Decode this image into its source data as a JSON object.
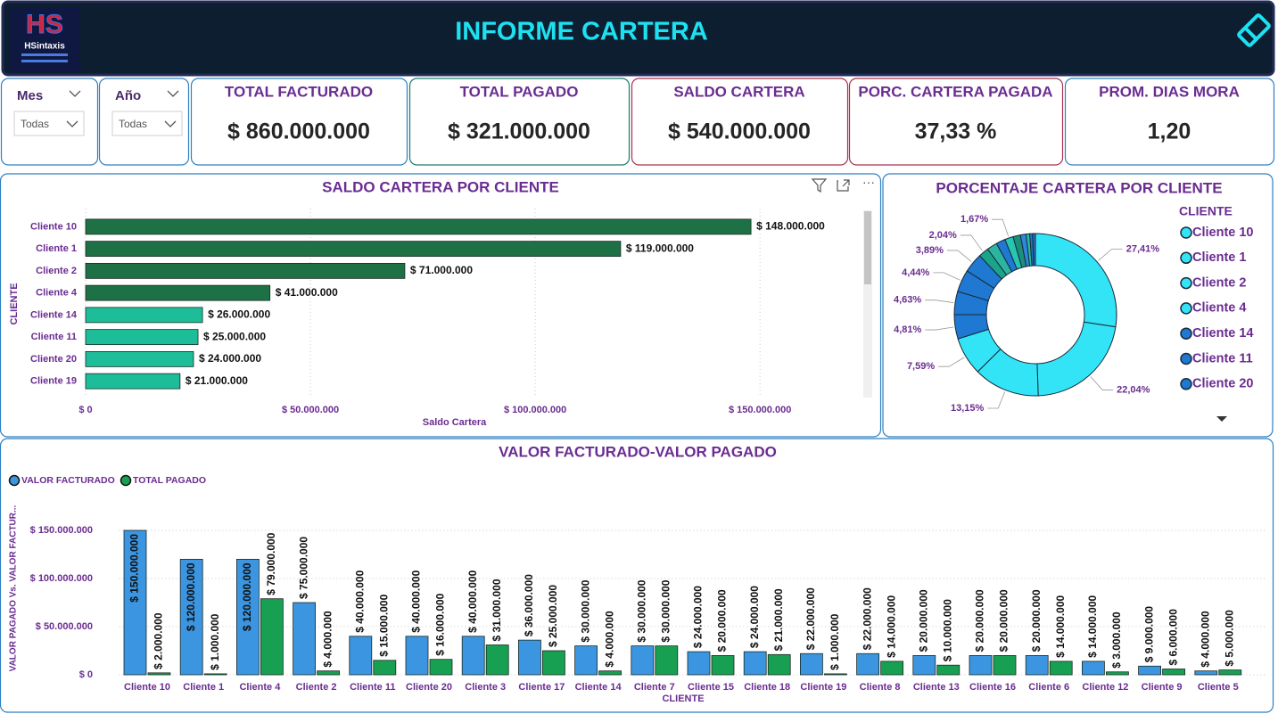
{
  "header": {
    "title": "INFORME CARTERA",
    "logo": {
      "mark": "HS",
      "name": "HSintaxis"
    }
  },
  "filters": [
    {
      "label": "Mes",
      "value": "Todas"
    },
    {
      "label": "Año",
      "value": "Todas"
    }
  ],
  "kpis": [
    {
      "label": "TOTAL FACTURADO",
      "value": "$ 860.000.000"
    },
    {
      "label": "TOTAL PAGADO",
      "value": "$ 321.000.000"
    },
    {
      "label": "SALDO CARTERA",
      "value": "$ 540.000.000"
    },
    {
      "label": "PORC. CARTERA PAGADA",
      "value": "37,33 %"
    },
    {
      "label": "PROM. DIAS MORA",
      "value": "1,20"
    }
  ],
  "chart_data": [
    {
      "type": "bar",
      "orientation": "horizontal",
      "title": "SALDO CARTERA POR CLIENTE",
      "x_label": "Saldo Cartera",
      "y_label": "CLIENTE",
      "categories": [
        "Cliente 10",
        "Cliente 1",
        "Cliente 2",
        "Cliente 4",
        "Cliente 14",
        "Cliente 11",
        "Cliente 20",
        "Cliente 19"
      ],
      "values": [
        148000000,
        119000000,
        71000000,
        41000000,
        26000000,
        25000000,
        24000000,
        21000000
      ],
      "value_labels": [
        "$ 148.000.000",
        "$ 119.000.000",
        "$ 71.000.000",
        "$ 41.000.000",
        "$ 26.000.000",
        "$ 25.000.000",
        "$ 24.000.000",
        "$ 21.000.000"
      ],
      "colors": [
        "#1e7145",
        "#1e7145",
        "#1e7145",
        "#1e7145",
        "#1dbd9a",
        "#1dbd9a",
        "#1dbd9a",
        "#1dbd9a"
      ],
      "xlim": [
        0,
        170000000
      ],
      "xticks": [
        {
          "value": 0,
          "label": "$ 0"
        },
        {
          "value": 50000000,
          "label": "$ 50.000.000"
        },
        {
          "value": 100000000,
          "label": "$ 100.000.000"
        },
        {
          "value": 150000000,
          "label": "$ 150.000.000"
        }
      ],
      "grid": true
    },
    {
      "type": "donut",
      "title": "PORCENTAJE CARTERA POR CLIENTE",
      "legend_title": "CLIENTE",
      "legend": "right",
      "categories": [
        "Cliente 10",
        "Cliente 1",
        "Cliente 2",
        "Cliente 4",
        "Cliente 14",
        "Cliente 11",
        "Cliente 20",
        null,
        null,
        null,
        null,
        null,
        null,
        null,
        null,
        null,
        null
      ],
      "values": [
        27.41,
        22.04,
        13.15,
        7.59,
        4.81,
        4.63,
        4.44,
        3.89,
        2.04,
        2.04,
        1.85,
        1.67,
        1.48,
        1.11,
        0.74,
        0.56,
        0.56
      ],
      "value_labels": [
        "27,41%",
        "22,04%",
        "13,15%",
        "7,59%",
        "4,81%",
        "4,63%",
        "4,44%",
        "3,89%",
        "2,04%",
        null,
        null,
        "1,67%",
        null,
        null,
        null,
        null,
        null
      ],
      "colors": [
        "#33e4f7",
        "#33e4f7",
        "#33e4f7",
        "#33e4f7",
        "#1f78d1",
        "#1f78d1",
        "#1f78d1",
        "#1f78d1",
        "#1aa58a",
        "#2bb5a0",
        "#1f78d1",
        "#26c6b0",
        "#1b8f7a",
        "#2e86de",
        "#1fbf9c",
        "#1f78d1",
        "#2a6fb8"
      ]
    },
    {
      "type": "grouped_bar",
      "title": "VALOR FACTURADO-VALOR PAGADO",
      "x_label": "CLIENTE",
      "y_label": "VALOR PAGADO Vs. VALOR FACTUR...",
      "legend": "top-left",
      "categories": [
        "Cliente 10",
        "Cliente 1",
        "Cliente 4",
        "Cliente 2",
        "Cliente 11",
        "Cliente 20",
        "Cliente 3",
        "Cliente 17",
        "Cliente 14",
        "Cliente 7",
        "Cliente 15",
        "Cliente 18",
        "Cliente 19",
        "Cliente 8",
        "Cliente 13",
        "Cliente 16",
        "Cliente 6",
        "Cliente 12",
        "Cliente 9",
        "Cliente 5"
      ],
      "series": [
        {
          "name": "VALOR FACTURADO",
          "color": "#3b95e0",
          "values": [
            150000000,
            120000000,
            120000000,
            75000000,
            40000000,
            40000000,
            40000000,
            36000000,
            30000000,
            30000000,
            24000000,
            24000000,
            22000000,
            22000000,
            20000000,
            20000000,
            20000000,
            14000000,
            9000000,
            4000000
          ],
          "value_labels": [
            "$ 150.000.000",
            "$ 120.000.000",
            "$ 120.000.000",
            "$ 75.000.000",
            "$ 40.000.000",
            "$ 40.000.000",
            "$ 40.000.000",
            "$ 36.000.000",
            "$ 30.000.000",
            "$ 30.000.000",
            "$ 24.000.000",
            "$ 24.000.000",
            "$ 22.000.000",
            "$ 22.000.000",
            "$ 20.000.000",
            "$ 20.000.000",
            "$ 20.000.000",
            "$ 14.000.000",
            "$ 9.000.000",
            "$ 4.000.000"
          ]
        },
        {
          "name": "TOTAL PAGADO",
          "color": "#17a052",
          "values": [
            2000000,
            1000000,
            79000000,
            4000000,
            15000000,
            16000000,
            31000000,
            25000000,
            4000000,
            30000000,
            20000000,
            21000000,
            1000000,
            14000000,
            10000000,
            20000000,
            14000000,
            3000000,
            6000000,
            5000000
          ],
          "value_labels": [
            "$ 2.000.000",
            "$ 1.000.000",
            "$ 79.000.000",
            "$ 4.000.000",
            "$ 15.000.000",
            "$ 16.000.000",
            "$ 31.000.000",
            "$ 25.000.000",
            "$ 4.000.000",
            "$ 30.000.000",
            "$ 20.000.000",
            "$ 21.000.000",
            "$ 1.000.000",
            "$ 14.000.000",
            "$ 10.000.000",
            "$ 20.000.000",
            "$ 14.000.000",
            "$ 3.000.000",
            "$ 6.000.000",
            "$ 5.000.000"
          ]
        }
      ],
      "ylim": [
        0,
        165000000
      ],
      "yticks": [
        {
          "value": 0,
          "label": "$ 0"
        },
        {
          "value": 50000000,
          "label": "$ 50.000.000"
        },
        {
          "value": 100000000,
          "label": "$ 100.000.000"
        },
        {
          "value": 150000000,
          "label": "$ 150.000.000"
        }
      ],
      "grid": true
    }
  ]
}
